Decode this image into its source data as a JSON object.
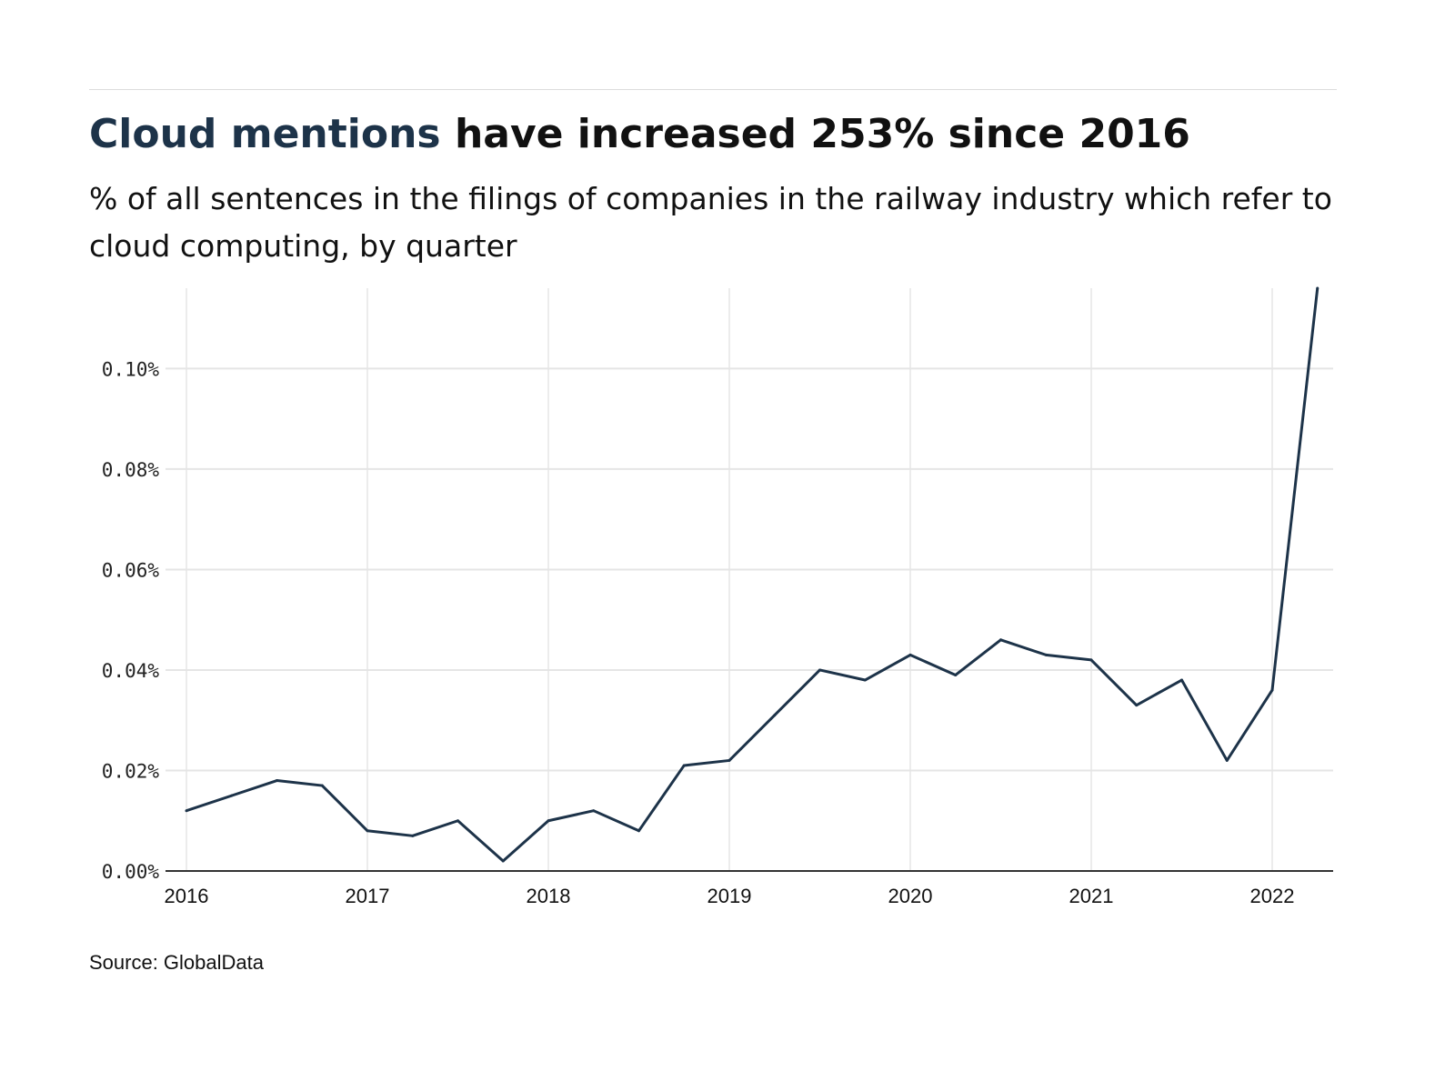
{
  "header": {
    "title_highlight": "Cloud mentions",
    "title_rest": " have increased 253% since 2016",
    "subtitle": "% of all sentences in the filings of companies in the railway industry which refer to cloud computing, by quarter"
  },
  "footer": {
    "source": "Source: GlobalData"
  },
  "colors": {
    "line": "#1d3349",
    "highlight": "#1d3349",
    "grid": "#e5e5e5"
  },
  "chart_data": {
    "type": "line",
    "title": "Cloud mentions have increased 253% since 2016",
    "subtitle": "% of all sentences in the filings of companies in the railway industry which refer to cloud computing, by quarter",
    "x": [
      "2016Q1",
      "2016Q2",
      "2016Q3",
      "2016Q4",
      "2017Q1",
      "2017Q2",
      "2017Q3",
      "2017Q4",
      "2018Q1",
      "2018Q2",
      "2018Q3",
      "2018Q4",
      "2019Q1",
      "2019Q2",
      "2019Q3",
      "2019Q4",
      "2020Q1",
      "2020Q2",
      "2020Q3",
      "2020Q4",
      "2021Q1",
      "2021Q2",
      "2021Q3",
      "2021Q4",
      "2022Q1",
      "2022Q2"
    ],
    "values": [
      0.012,
      0.015,
      0.018,
      0.017,
      0.008,
      0.007,
      0.01,
      0.002,
      0.01,
      0.012,
      0.008,
      0.021,
      0.022,
      0.031,
      0.04,
      0.038,
      0.043,
      0.039,
      0.046,
      0.043,
      0.042,
      0.033,
      0.038,
      0.022,
      0.036,
      0.116
    ],
    "x_ticks": [
      "2016",
      "2017",
      "2018",
      "2019",
      "2020",
      "2021",
      "2022"
    ],
    "y_ticks": [
      0,
      0.02,
      0.04,
      0.06,
      0.08,
      0.1
    ],
    "y_tick_labels": [
      "0.00%",
      "0.02%",
      "0.04%",
      "0.06%",
      "0.08%",
      "0.10%"
    ],
    "ylim": [
      0,
      0.116
    ],
    "grid": true,
    "legend": "none"
  }
}
